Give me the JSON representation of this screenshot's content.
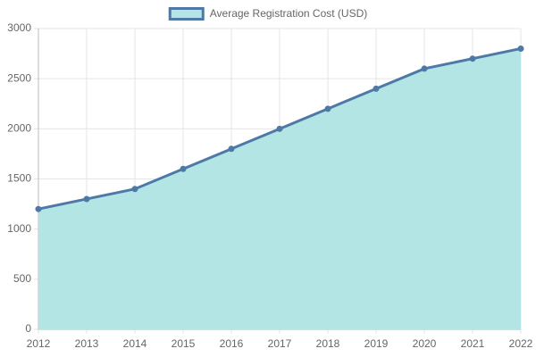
{
  "chart_data": {
    "type": "line",
    "categories": [
      "2012",
      "2013",
      "2014",
      "2015",
      "2016",
      "2017",
      "2018",
      "2019",
      "2020",
      "2021",
      "2022"
    ],
    "series": [
      {
        "name": "Average Registration Cost (USD)",
        "color": "#4e79a7",
        "fill": "#b3e5e4",
        "values": [
          1200,
          1300,
          1400,
          1600,
          1800,
          2000,
          2200,
          2400,
          2600,
          2700,
          2800
        ]
      }
    ],
    "ylim": [
      0,
      3000
    ],
    "yticks": [
      0,
      500,
      1000,
      1500,
      2000,
      2500,
      3000
    ],
    "grid": true,
    "legend": "top"
  }
}
